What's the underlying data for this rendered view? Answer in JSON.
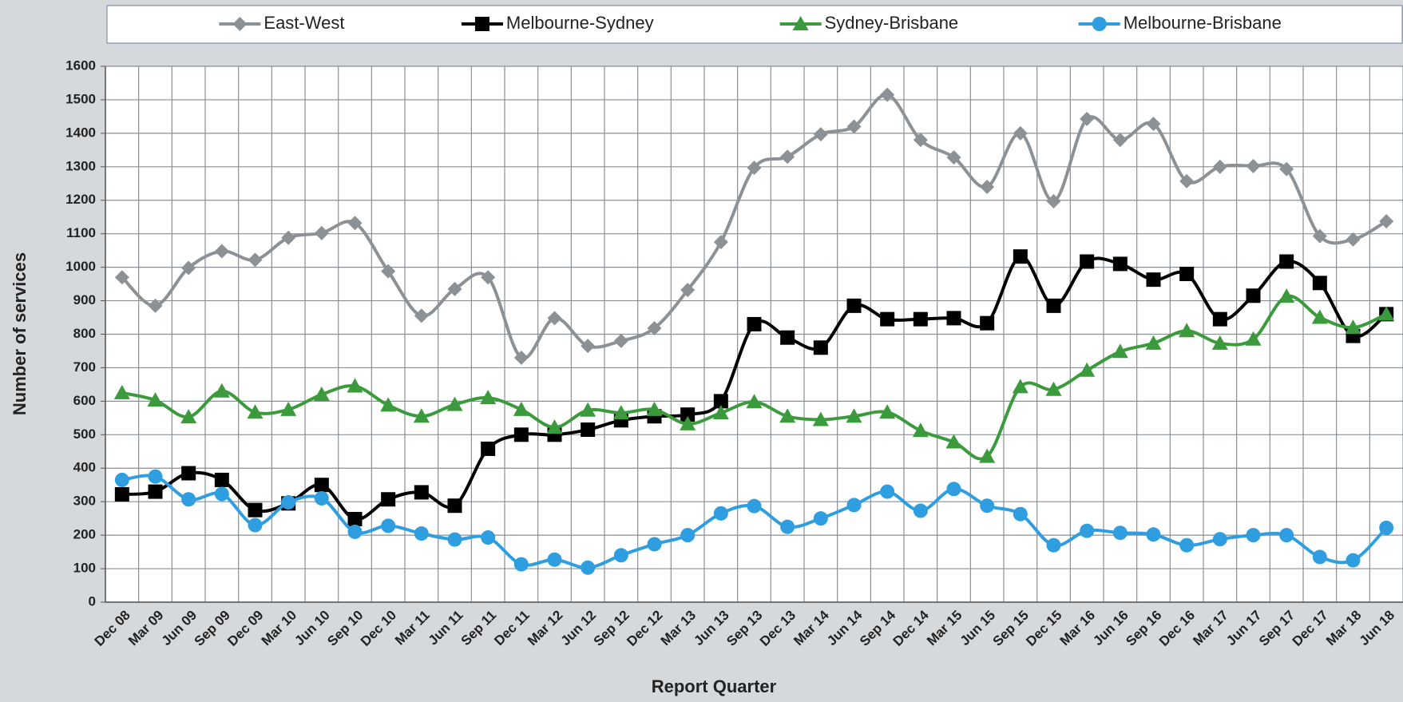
{
  "chart_data": {
    "type": "line",
    "x_label": "Report Quarter",
    "y_label": "Number of services",
    "categories": [
      "Dec 08",
      "Mar 09",
      "Jun 09",
      "Sep 09",
      "Dec 09",
      "Mar 10",
      "Jun 10",
      "Sep 10",
      "Dec 10",
      "Mar 11",
      "Jun 11",
      "Sep 11",
      "Dec 11",
      "Mar 12",
      "Jun 12",
      "Sep 12",
      "Dec 12",
      "Mar 13",
      "Jun 13",
      "Sep 13",
      "Dec 13",
      "Mar 14",
      "Jun 14",
      "Sep 14",
      "Dec 14",
      "Mar 15",
      "Jun 15",
      "Sep 15",
      "Dec 15",
      "Mar 16",
      "Jun 16",
      "Sep 16",
      "Dec 16",
      "Mar 17",
      "Jun 17",
      "Sep 17",
      "Dec 17",
      "Mar 18",
      "Jun 18"
    ],
    "series": [
      {
        "name": "East-West",
        "color": "#8c9196",
        "marker": "diamond",
        "values": [
          970,
          885,
          998,
          1048,
          1022,
          1088,
          1102,
          1132,
          988,
          855,
          935,
          970,
          730,
          848,
          765,
          780,
          818,
          932,
          1075,
          1297,
          1330,
          1397,
          1420,
          1515,
          1380,
          1328,
          1240,
          1400,
          1197,
          1443,
          1380,
          1428,
          1257,
          1300,
          1302,
          1293,
          1093,
          1083,
          1137
        ]
      },
      {
        "name": "Melbourne-Sydney",
        "color": "#000000",
        "marker": "square",
        "values": [
          322,
          330,
          385,
          365,
          275,
          295,
          350,
          248,
          307,
          328,
          288,
          458,
          500,
          500,
          515,
          543,
          555,
          560,
          600,
          830,
          790,
          760,
          885,
          845,
          845,
          848,
          833,
          1032,
          885,
          1017,
          1010,
          963,
          980,
          845,
          915,
          1017,
          953,
          795,
          860
        ]
      },
      {
        "name": "Sydney-Brisbane",
        "color": "#3a9a3c",
        "marker": "triangle",
        "values": [
          625,
          603,
          553,
          630,
          567,
          575,
          620,
          645,
          588,
          555,
          590,
          610,
          575,
          522,
          573,
          565,
          575,
          532,
          565,
          598,
          555,
          545,
          555,
          567,
          512,
          478,
          435,
          643,
          635,
          692,
          748,
          773,
          810,
          773,
          785,
          913,
          850,
          820,
          860
        ]
      },
      {
        "name": "Melbourne-Brisbane",
        "color": "#2f9ee0",
        "marker": "circle",
        "values": [
          365,
          375,
          307,
          323,
          230,
          298,
          310,
          210,
          228,
          205,
          187,
          193,
          113,
          127,
          103,
          140,
          173,
          200,
          265,
          287,
          225,
          250,
          290,
          330,
          273,
          338,
          288,
          263,
          170,
          213,
          207,
          202,
          170,
          188,
          200,
          200,
          135,
          125,
          222
        ]
      }
    ],
    "ylim": [
      0,
      1600
    ],
    "yticks": [
      0,
      100,
      200,
      300,
      400,
      500,
      600,
      700,
      800,
      900,
      1000,
      1100,
      1200,
      1300,
      1400,
      1500,
      1600
    ],
    "grid": true,
    "legend": "top"
  }
}
